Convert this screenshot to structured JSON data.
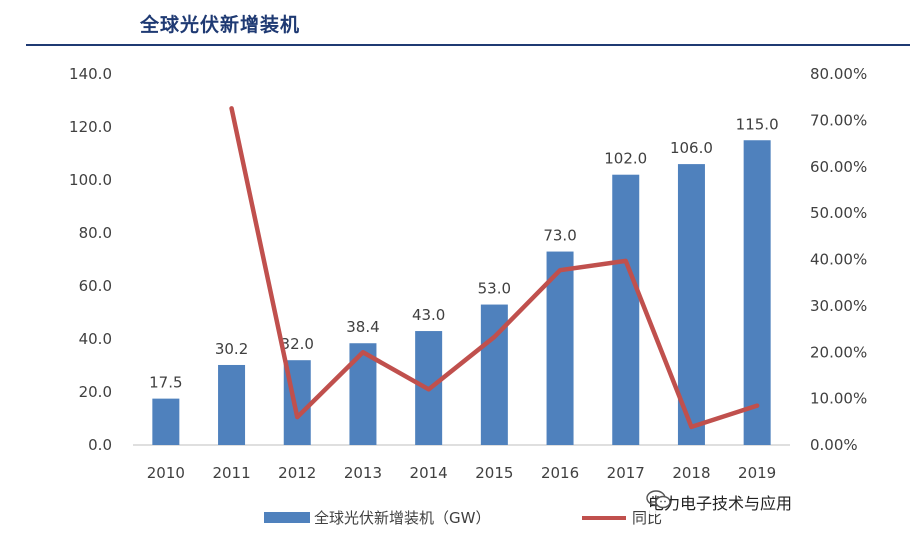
{
  "header": {
    "title": "全球光伏新增装机"
  },
  "chart_data": {
    "type": "bar",
    "categories": [
      "2010",
      "2011",
      "2012",
      "2013",
      "2014",
      "2015",
      "2016",
      "2017",
      "2018",
      "2019"
    ],
    "series": [
      {
        "name": "全球光伏新增装机（GW）",
        "type": "bar",
        "axis": "left",
        "values": [
          17.5,
          30.2,
          32.0,
          38.4,
          43.0,
          53.0,
          73.0,
          102.0,
          106.0,
          115.0
        ],
        "labels": [
          "17.5",
          "30.2",
          "32.0",
          "38.4",
          "43.0",
          "53.0",
          "73.0",
          "102.0",
          "106.0",
          "115.0"
        ]
      },
      {
        "name": "同比",
        "type": "line",
        "axis": "right",
        "values": [
          null,
          0.726,
          0.06,
          0.2,
          0.12,
          0.233,
          0.377,
          0.397,
          0.039,
          0.085
        ]
      }
    ],
    "y_left": {
      "ylim": [
        0,
        140
      ],
      "ticks": [
        "0.0",
        "20.0",
        "40.0",
        "60.0",
        "80.0",
        "100.0",
        "120.0",
        "140.0"
      ]
    },
    "y_right": {
      "ylim": [
        0,
        0.8
      ],
      "ticks": [
        "0.00%",
        "10.00%",
        "20.00%",
        "30.00%",
        "40.00%",
        "50.00%",
        "60.00%",
        "70.00%",
        "80.00%"
      ]
    },
    "legend_position": "bottom",
    "colors": {
      "bar": "#4f81bd",
      "line": "#c0504d",
      "axis": "#bfbfbf"
    }
  },
  "watermark": {
    "text": "电力电子技术与应用"
  }
}
